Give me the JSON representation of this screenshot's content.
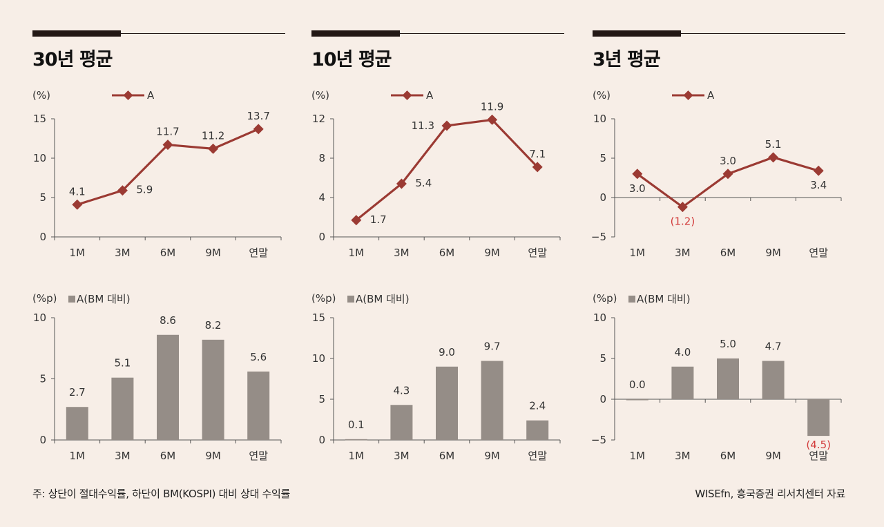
{
  "colors": {
    "line": "#9b3a33",
    "bar": "#958d87",
    "axis": "#555555",
    "negative_label": "#d23a3a",
    "background": "#f7eee7"
  },
  "panels": [
    {
      "title": "30년 평균",
      "line_chart": {
        "type": "line",
        "unit": "(%)",
        "legend": "A",
        "categories": [
          "1M",
          "3M",
          "6M",
          "9M",
          "연말"
        ],
        "values": [
          4.1,
          5.9,
          11.7,
          11.2,
          13.7
        ],
        "labels": [
          "4.1",
          "5.9",
          "11.7",
          "11.2",
          "13.7"
        ],
        "label_pos": [
          "above",
          "right",
          "above",
          "above",
          "above"
        ],
        "ylim": [
          0,
          15
        ],
        "yticks": [
          0,
          5,
          10,
          15
        ],
        "ytick_labels": [
          "0",
          "5",
          "10",
          "15"
        ]
      },
      "bar_chart": {
        "type": "bar",
        "unit": "(%p)",
        "legend": "A(BM 대비)",
        "categories": [
          "1M",
          "3M",
          "6M",
          "9M",
          "연말"
        ],
        "values": [
          2.7,
          5.1,
          8.6,
          8.2,
          5.6
        ],
        "labels": [
          "2.7",
          "5.1",
          "8.6",
          "8.2",
          "5.6"
        ],
        "ylim": [
          0,
          10
        ],
        "yticks": [
          0,
          5,
          10
        ],
        "ytick_labels": [
          "0",
          "5",
          "10"
        ]
      }
    },
    {
      "title": "10년 평균",
      "line_chart": {
        "type": "line",
        "unit": "(%)",
        "legend": "A",
        "categories": [
          "1M",
          "3M",
          "6M",
          "9M",
          "연말"
        ],
        "values": [
          1.7,
          5.4,
          11.3,
          11.9,
          7.1
        ],
        "labels": [
          "1.7",
          "5.4",
          "11.3",
          "11.9",
          "7.1"
        ],
        "label_pos": [
          "right",
          "right",
          "left",
          "above",
          "above"
        ],
        "ylim": [
          0,
          12
        ],
        "yticks": [
          0,
          4,
          8,
          12
        ],
        "ytick_labels": [
          "0",
          "4",
          "8",
          "12"
        ]
      },
      "bar_chart": {
        "type": "bar",
        "unit": "(%p)",
        "legend": "A(BM 대비)",
        "categories": [
          "1M",
          "3M",
          "6M",
          "9M",
          "연말"
        ],
        "values": [
          0.1,
          4.3,
          9.0,
          9.7,
          2.4
        ],
        "labels": [
          "0.1",
          "4.3",
          "9.0",
          "9.7",
          "2.4"
        ],
        "ylim": [
          0,
          15
        ],
        "yticks": [
          0,
          5,
          10,
          15
        ],
        "ytick_labels": [
          "0",
          "5",
          "10",
          "15"
        ]
      }
    },
    {
      "title": "3년 평균",
      "line_chart": {
        "type": "line",
        "unit": "(%)",
        "legend": "A",
        "categories": [
          "1M",
          "3M",
          "6M",
          "9M",
          "연말"
        ],
        "values": [
          3.0,
          -1.2,
          3.0,
          5.1,
          3.4
        ],
        "labels": [
          "3.0",
          "(1.2)",
          "3.0",
          "5.1",
          "3.4"
        ],
        "label_pos": [
          "below",
          "below",
          "above",
          "above",
          "below"
        ],
        "ylim": [
          -5,
          10
        ],
        "yticks": [
          -5,
          0,
          5,
          10
        ],
        "ytick_labels": [
          "-5",
          "0",
          "5",
          "10"
        ]
      },
      "bar_chart": {
        "type": "bar",
        "unit": "(%p)",
        "legend": "A(BM 대비)",
        "categories": [
          "1M",
          "3M",
          "6M",
          "9M",
          "연말"
        ],
        "values": [
          0.0,
          4.0,
          5.0,
          4.7,
          -4.5
        ],
        "labels": [
          "0.0",
          "4.0",
          "5.0",
          "4.7",
          "(4.5)"
        ],
        "ylim": [
          -5,
          10
        ],
        "yticks": [
          -5,
          0,
          5,
          10
        ],
        "ytick_labels": [
          "-5",
          "0",
          "5",
          "10"
        ]
      }
    }
  ],
  "footnote_left": "주: 상단이 절대수익률, 하단이 BM(KOSPI) 대비 상대 수익률",
  "footnote_right": "WISEfn, 흥국증권 리서치센터 자료"
}
